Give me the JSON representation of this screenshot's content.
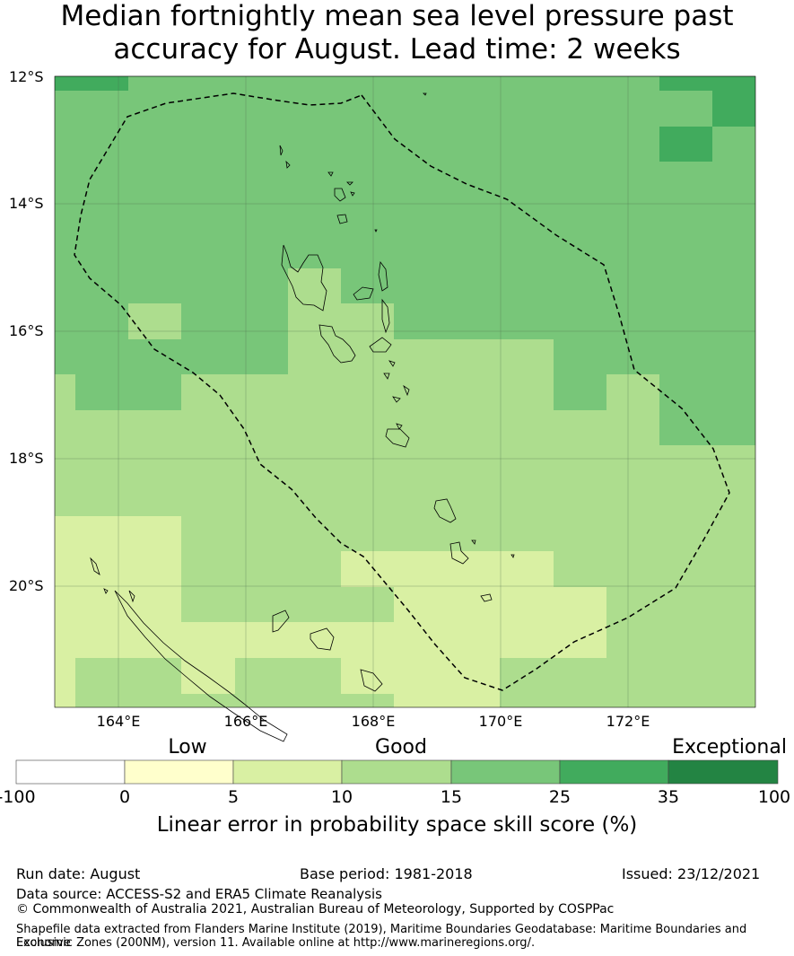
{
  "title": {
    "line1": "Median fortnightly mean sea level pressure past",
    "line2": "accuracy for August. Lead time: 2 weeks"
  },
  "map": {
    "lat_labels": [
      "12°S",
      "14°S",
      "16°S",
      "18°S",
      "20°S"
    ],
    "lon_labels": [
      "164°E",
      "166°E",
      "168°E",
      "170°E",
      "172°E"
    ],
    "cell_colors": {
      "5-10": "#d9f0a3",
      "10-15": "#addd8e",
      "15-25": "#78c679",
      "25-35": "#41ab5d"
    },
    "coastline_color": "#000000",
    "eez_boundary_style": "dashed"
  },
  "colorbar": {
    "category_labels": {
      "low": "Low",
      "good": "Good",
      "exceptional": "Exceptional"
    },
    "ticks": [
      "-100",
      "0",
      "5",
      "10",
      "15",
      "25",
      "35",
      "100"
    ],
    "colors": [
      "#ffffff",
      "#ffffcc",
      "#d9f0a3",
      "#addd8e",
      "#78c679",
      "#41ab5d",
      "#238443"
    ],
    "title": "Linear error in probability space skill score (%)"
  },
  "footer": {
    "run_date": "Run date: August",
    "base_period": "Base period: 1981-2018",
    "issued": "Issued: 23/12/2021",
    "data_source": "Data source: ACCESS-S2 and ERA5 Climate Reanalysis",
    "copyright": "© Commonwealth of Australia 2021, Australian Bureau of Meteorology, Supported by COSPPac",
    "shapefile_line1": "Shapefile data extracted from Flanders Marine Institute (2019), Maritime Boundaries Geodatabase: Maritime Boundaries and Exclusive",
    "shapefile_line2": "Economic Zones (200NM), version 11. Available online at http://www.marineregions.org/."
  }
}
